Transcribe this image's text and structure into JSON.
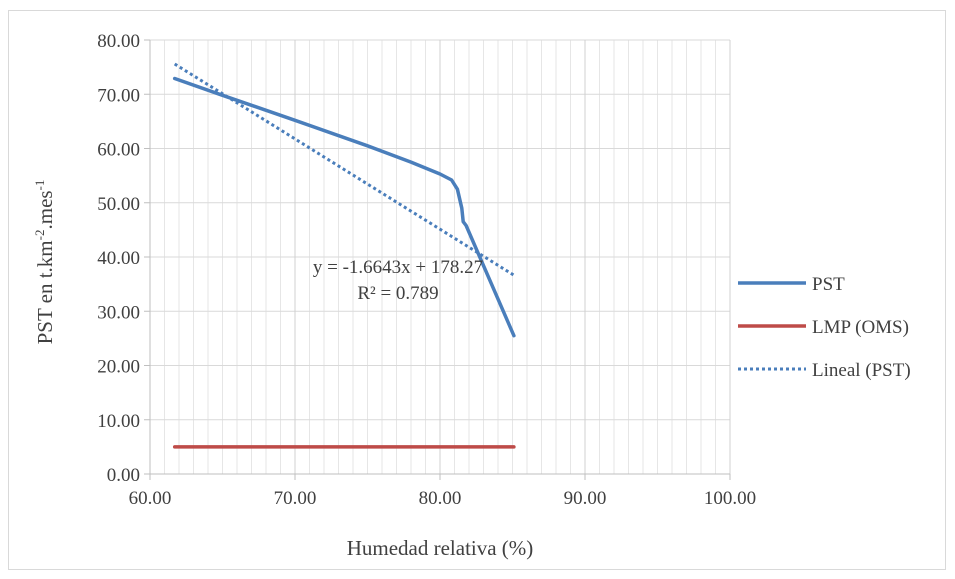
{
  "chart_data": {
    "type": "line",
    "title": "",
    "xlabel": "Humedad relativa (%)",
    "ylabel_main": "PST en t.km",
    "ylabel_sup1": "-2",
    "ylabel_mid": ".mes",
    "ylabel_sup2": "-1",
    "xlim": [
      60,
      100
    ],
    "ylim": [
      0,
      80
    ],
    "x_ticks": [
      60,
      70,
      80,
      90,
      100
    ],
    "x_tick_labels": [
      "60.00",
      "70.00",
      "80.00",
      "90.00",
      "100.00"
    ],
    "y_ticks": [
      0,
      10,
      20,
      30,
      40,
      50,
      60,
      70,
      80
    ],
    "y_tick_labels": [
      "0.00",
      "10.00",
      "20.00",
      "30.00",
      "40.00",
      "50.00",
      "60.00",
      "70.00",
      "80.00"
    ],
    "minor_x_step": 1,
    "grid": true,
    "legend_position": "right",
    "series": [
      {
        "name": "PST",
        "color": "#4a7ebb",
        "style": "solid",
        "x": [
          61.7,
          65.0,
          70.0,
          75.0,
          78.0,
          80.0,
          80.8,
          81.2,
          81.5,
          81.6,
          81.8,
          85.1
        ],
        "y": [
          72.9,
          69.8,
          65.2,
          60.5,
          57.5,
          55.3,
          54.2,
          52.5,
          49.0,
          46.5,
          45.8,
          25.5
        ]
      },
      {
        "name": "LMP (OMS)",
        "color": "#be4b48",
        "style": "solid",
        "x": [
          61.7,
          85.1
        ],
        "y": [
          5.0,
          5.0
        ]
      },
      {
        "name": "Lineal (PST)",
        "color": "#4a7ebb",
        "style": "dotted",
        "x": [
          61.7,
          85.1
        ],
        "y": [
          75.58,
          36.64
        ]
      }
    ],
    "annotation": {
      "equation": "y = -1.6643x + 178.27",
      "r2": "R² = 0.789"
    }
  }
}
